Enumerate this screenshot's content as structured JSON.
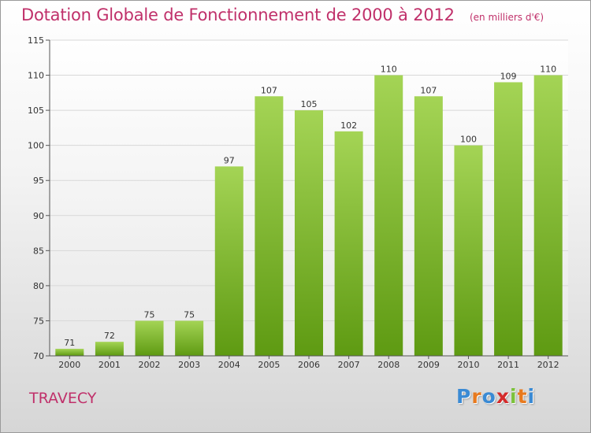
{
  "title": "Dotation Globale de Fonctionnement de 2000 à 2012",
  "subtitle": "(en milliers d'€)",
  "commune": "TRAVECY",
  "logo": {
    "letters": [
      "P",
      "r",
      "o",
      "x",
      "i",
      "t",
      "i"
    ],
    "colors": [
      "#3a8ad4",
      "#e87a1e",
      "#3a8ad4",
      "#d42a2a",
      "#7cc23a",
      "#e87a1e",
      "#3a8ad4"
    ]
  },
  "colors": {
    "title": "#c0306a",
    "bar_top": "#a4d455",
    "bar_bottom": "#5e9a12",
    "grid": "#d8d8d8"
  },
  "chart_data": {
    "type": "bar",
    "title": "Dotation Globale de Fonctionnement de 2000 à 2012",
    "subtitle": "(en milliers d'€)",
    "categories": [
      "2000",
      "2001",
      "2002",
      "2003",
      "2004",
      "2005",
      "2006",
      "2007",
      "2008",
      "2009",
      "2010",
      "2011",
      "2012"
    ],
    "values": [
      71,
      72,
      75,
      75,
      97,
      107,
      105,
      102,
      110,
      107,
      100,
      109,
      110
    ],
    "ylim": [
      70,
      115
    ],
    "yticks": [
      70,
      75,
      80,
      85,
      90,
      95,
      100,
      105,
      110,
      115
    ],
    "grid": true,
    "legend": "none"
  }
}
